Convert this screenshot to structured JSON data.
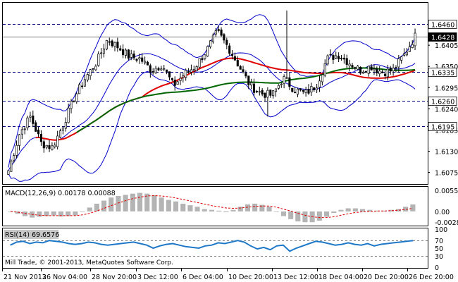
{
  "chart_data": {
    "type": "candlestick",
    "symbol": "",
    "main": {
      "ylim": [
        1.6045,
        1.6515
      ],
      "y_ticks": [
        "1.6075",
        "1.6130",
        "1.6185",
        "1.6240",
        "1.6295",
        "1.6350",
        "1.6405"
      ],
      "x_labels": [
        "21 Nov 2013",
        "26 Nov 04:00",
        "28 Nov 20:00",
        "3 Dec 12:00",
        "6 Dec 04:00",
        "10 Dec 20:00",
        "13 Dec 12:00",
        "18 Dec 04:00",
        "20 Dec 20:00",
        "26 Dec 20:00"
      ],
      "levels": [
        {
          "value": 1.646,
          "label": "1.6460",
          "style": "dashed"
        },
        {
          "value": 1.6428,
          "label": "1.6428",
          "style": "current"
        },
        {
          "value": 1.6335,
          "label": "1.6335",
          "style": "dashed"
        },
        {
          "value": 1.626,
          "label": "1.6260",
          "style": "dashed"
        },
        {
          "value": 1.6195,
          "label": "1.6195",
          "style": "dashed"
        }
      ],
      "close_anchors": [
        1.608,
        1.6175,
        1.622,
        1.615,
        1.614,
        1.62,
        1.627,
        1.632,
        1.636,
        1.642,
        1.64,
        1.6375,
        1.637,
        1.634,
        1.6355,
        1.63,
        1.633,
        1.635,
        1.639,
        1.644,
        1.64,
        1.635,
        1.63,
        1.628,
        1.6275,
        1.632,
        1.629,
        1.628,
        1.63,
        1.637,
        1.638,
        1.636,
        1.634,
        1.635,
        1.6335,
        1.634,
        1.638,
        1.6428
      ],
      "colors": {
        "bull": "#ffffff",
        "bear": "#000000",
        "wick": "#000000",
        "bands": "#0000cc",
        "ma_red": "#e00000",
        "ma_green": "#006600"
      }
    },
    "macd": {
      "label": "MACD(12,26,9) 0.00178 0.00088",
      "ylim": [
        -0.0035,
        0.0062
      ],
      "y_ticks": [
        "0.0055",
        "0.00",
        "-0.0028"
      ],
      "values": [
        0.0,
        -0.0006,
        -0.0012,
        -0.0016,
        -0.0014,
        -0.0012,
        -0.001,
        -0.0013,
        -0.0012,
        -0.001,
        0.0,
        0.001,
        0.002,
        0.0028,
        0.0036,
        0.004,
        0.0043,
        0.0046,
        0.0048,
        0.0046,
        0.0042,
        0.0036,
        0.003,
        0.0026,
        0.002,
        0.0016,
        0.0012,
        0.0006,
        0.0004,
        0.0002,
        -0.0002,
        0.0004,
        0.0012,
        0.0018,
        0.002,
        0.0017,
        0.0012,
        0.0,
        -0.0012,
        -0.002,
        -0.0026,
        -0.0028,
        -0.0028,
        -0.0024,
        -0.0014,
        -0.0004,
        0.0004,
        0.0008,
        0.0008,
        0.0006,
        0.0004,
        0.0002,
        0.0002,
        0.0004,
        0.0006,
        0.0012,
        0.0018
      ],
      "signal": [
        0.0,
        -0.0002,
        -0.0005,
        -0.0008,
        -0.001,
        -0.0011,
        -0.0011,
        -0.0011,
        -0.0011,
        -0.0011,
        -0.0009,
        -0.0005,
        0.0001,
        0.0008,
        0.0015,
        0.0022,
        0.0028,
        0.0033,
        0.0037,
        0.004,
        0.0041,
        0.004,
        0.0038,
        0.0035,
        0.0031,
        0.0027,
        0.0023,
        0.0019,
        0.0015,
        0.0012,
        0.0009,
        0.0008,
        0.0009,
        0.0011,
        0.0013,
        0.0014,
        0.0014,
        0.0011,
        0.0006,
        0.0001,
        -0.0005,
        -0.001,
        -0.0014,
        -0.0016,
        -0.0016,
        -0.0014,
        -0.001,
        -0.0006,
        -0.0003,
        -0.0001,
        0.0,
        0.0001,
        0.0001,
        0.0002,
        0.0003,
        0.0005,
        0.0008
      ],
      "colors": {
        "hist": "#b4b4b4",
        "signal": "#e00000"
      }
    },
    "rsi": {
      "label": "RSI(14) 69.6576",
      "ylim": [
        0,
        100
      ],
      "y_ticks": [
        "100",
        "70",
        "50",
        "30",
        "0"
      ],
      "levels": [
        70,
        30
      ],
      "values": [
        58,
        66,
        68,
        62,
        66,
        64,
        70,
        68,
        66,
        62,
        60,
        62,
        66,
        64,
        60,
        58,
        60,
        62,
        64,
        66,
        62,
        58,
        50,
        56,
        60,
        62,
        58,
        54,
        52,
        50,
        56,
        58,
        64,
        62,
        66,
        70,
        66,
        56,
        48,
        52,
        46,
        56,
        58,
        42,
        50,
        56,
        62,
        68,
        66,
        62,
        58,
        60,
        64,
        60,
        58,
        62,
        56,
        60,
        62,
        64,
        66,
        68,
        70
      ],
      "colors": {
        "line": "#1e78c8"
      }
    },
    "watermark": "Mill Trade, © 2001-2013, MetaQuotes Software Corp."
  }
}
